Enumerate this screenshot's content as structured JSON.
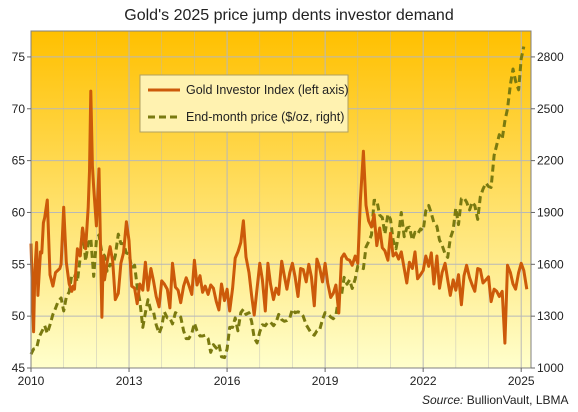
{
  "chart_data": {
    "type": "line",
    "title": "Gold's 2025 price jump  dents investor demand",
    "source": "Source:",
    "source_name": " BullionVault, LBMA",
    "left_axis": {
      "ylim": [
        45,
        77.5
      ],
      "ticks": [
        "45",
        "50",
        "55",
        "60",
        "65",
        "70",
        "75"
      ],
      "tick_values": [
        45,
        50,
        55,
        60,
        65,
        70,
        75
      ]
    },
    "right_axis": {
      "ylim": [
        1000,
        2950
      ],
      "ticks": [
        "1000",
        "1300",
        "1600",
        "1900",
        "2200",
        "2500",
        "2800"
      ],
      "tick_values": [
        1000,
        1300,
        1600,
        1900,
        2200,
        2500,
        2800
      ]
    },
    "x_axis": {
      "xlim": [
        2010,
        2025.3
      ],
      "ticks": [
        "2010",
        "2013",
        "2016",
        "2019",
        "2022",
        "2025"
      ],
      "tick_values": [
        2010,
        2013,
        2016,
        2019,
        2022,
        2025
      ]
    },
    "grid": true,
    "legend_position": "upper-center",
    "colors": {
      "index_line": "#cc5a0a",
      "price_line": "#7a7a10",
      "bg_top": "#ffc000",
      "bg_bottom": "#ffffcc",
      "grid": "#b8b8b8",
      "legend_bg": "#fff2b0",
      "legend_border": "#b0a060"
    },
    "series": [
      {
        "name": "Gold Investor Index (left axis)",
        "axis": "left",
        "style": "solid",
        "x": [
          2010.0,
          2010.17,
          2010.33,
          2010.5,
          2010.67,
          2010.83,
          2011.0,
          2011.17,
          2011.33,
          2011.5,
          2011.67,
          2011.83,
          2012.0,
          2012.17,
          2012.33,
          2012.5,
          2012.67,
          2012.83,
          2013.0,
          2013.17,
          2013.33,
          2013.5,
          2013.67,
          2013.83,
          2014.0,
          2014.17,
          2014.33,
          2014.5,
          2014.67,
          2014.83,
          2015.0,
          2015.17,
          2015.33,
          2015.5,
          2015.67,
          2015.83,
          2016.0,
          2016.17,
          2016.33,
          2016.5,
          2016.67,
          2016.83,
          2017.0,
          2017.17,
          2017.33,
          2017.5,
          2017.67,
          2017.83,
          2018.0,
          2018.17,
          2018.33,
          2018.5,
          2018.67,
          2018.83,
          2019.0,
          2019.17,
          2019.33,
          2019.5,
          2019.67,
          2019.83,
          2020.0,
          2020.17,
          2020.33,
          2020.5,
          2020.67,
          2020.83,
          2021.0,
          2021.17,
          2021.33,
          2021.5,
          2021.67,
          2021.83,
          2022.0,
          2022.17,
          2022.33,
          2022.5,
          2022.67,
          2022.83,
          2023.0,
          2023.17,
          2023.33,
          2023.5,
          2023.67,
          2023.83,
          2024.0,
          2024.17,
          2024.33,
          2024.5,
          2024.67,
          2024.83,
          2025.0,
          2025.08
        ],
        "values": [
          57.0,
          48.5,
          57.2,
          59.0,
          61.2,
          54.0,
          53.0,
          60.5,
          52.5,
          56.0,
          53.8,
          71.5,
          59.0,
          63.8,
          53.0,
          55.2,
          54.0,
          51.5,
          57.0,
          55.2,
          53.5,
          51.8,
          53.0,
          54.5,
          51.0,
          52.8,
          54.0,
          50.8,
          52.5,
          55.2,
          54.0,
          51.2,
          55.0,
          52.0,
          50.5,
          54.0,
          58.8,
          55.5,
          53.0,
          52.5,
          50.2,
          55.0,
          56.0,
          59.5,
          51.8,
          52.8,
          55.0,
          53.5,
          51.0,
          54.5,
          52.0,
          53.5,
          51.5,
          55.5,
          53.0,
          52.0,
          52.5,
          50.5,
          55.5,
          56.0,
          55.0,
          66.0,
          60.0,
          58.5,
          62.0,
          55.5,
          57.5,
          54.0,
          56.5,
          55.0,
          53.5,
          55.0,
          54.5,
          56.0,
          53.5,
          55.5,
          52.5,
          54.0,
          51.5,
          53.0,
          55.0,
          53.5,
          52.5,
          55.0,
          53.0,
          51.5,
          52.5,
          47.5,
          54.8,
          52.5,
          55.0,
          52.5
        ],
        "points_csv": "2010.0,57;2010.08,48.5;2010.12,54.5;2010.17,57.1;2010.21,52;2010.29,56.2;2010.33,56.1;2010.38,59;2010.42,59.5;2010.5,61.2;2010.58,54;2010.67,52.9;2010.75,54.2;2010.88,54.6;2010.92,55;2011.0,60.5;2011.08,55.2;2011.17,53.1;2011.25,52.4;2011.29,52.9;2011.33,52.6;2011.42,56.5;2011.5,55.8;2011.58,58.5;2011.67,56.5;2011.75,60.5;2011.79,64;2011.83,71.7;2011.88,64.5;2011.92,62.4;2012.0,58.7;2012.08,64.2;2012.17,49.9;2012.21,55.8;2012.25,53.5;2012.33,55.2;2012.42,56.7;2012.5,55.3;2012.58,51.6;2012.67,52.2;2012.75,55.1;2012.83,56.1;2012.92,59.1;2013.0,57.3;2013.08,52.9;2013.17,52.7;2013.25,51.2;2013.33,53.1;2013.42,52.5;2013.5,55.2;2013.58,52.5;2013.67,54.6;2013.75,53.4;2013.83,51.9;2013.92,50.9;2014.0,53.4;2014.08,53.1;2014.17,52.6;2014.25,50.8;2014.33,55.1;2014.42,52.8;2014.5,52.5;2014.58,51.3;2014.67,52.9;2014.75,53.7;2014.83,53.0;2014.92,52.1;2015.0,55.4;2015.08,53.0;2015.17,53.9;2015.25,52.3;2015.33,52.9;2015.42,52.1;2015.5,53.0;2015.58,52.7;2015.67,51.4;2015.75,50.6;2015.83,53.1;2015.92,51.5;2016.0,52.6;2016.08,50.5;2016.17,52.7;2016.25,55.6;2016.33,56.2;2016.42,57.1;2016.5,59.2;2016.58,55.7;2016.67,54.2;2016.75,52.0;2016.83,50.1;2016.92,52.7;2017.0,55.1;2017.08,53.5;2017.17,50.5;2017.25,55.1;2017.33,53.1;2017.42,51.6;2017.5,52.7;2017.58,52.1;2017.67,55.3;2017.75,53.9;2017.83,52.6;2017.92,54.2;2018.0,55.1;2018.08,53.8;2018.17,51.9;2018.25,54.6;2018.33,54.5;2018.42,53.3;2018.5,55.0;2018.58,53.8;2018.67,51.0;2018.75,55.5;2018.83,54.7;2018.92,53.3;2019.0,55.1;2019.08,53.2;2019.17,51.8;2019.25,52.2;2019.33,53.0;2019.42,50.3;2019.5,55.6;2019.58,56.0;2019.67,55.5;2019.75,55.4;2019.83,54.9;2019.92,55.8;2020.0,55.1;2020.08,61.2;2020.17,65.9;2020.25,60.7;2020.33,59.2;2020.42,58.6;2020.5,59.8;2020.58,56.8;2020.67,58.5;2020.75,56.6;2020.83,56.3;2020.92,55.4;2021.0,58.0;2021.08,55.8;2021.17,56.1;2021.25,55.5;2021.33,56.2;2021.42,54.6;2021.5,53.2;2021.58,55.2;2021.67,54.6;2021.75,56.2;2021.83,53.6;2021.92,54.0;2022.0,54.4;2022.08,55.8;2022.17,54.8;2022.25,56.1;2022.33,53.1;2022.42,55.8;2022.5,52.7;2022.58,54.2;2022.67,55.1;2022.75,53.5;2022.83,52.0;2022.92,53.5;2023.0,52.5;2023.08,54.0;2023.17,51.1;2023.25,53.9;2023.33,54.9;2023.42,53.7;2023.5,53.0;2023.58,52.4;2023.67,54.6;2023.75,54.5;2023.83,53.2;2023.92,53.5;2024.0,53.8;2024.08,51.4;2024.17,52.6;2024.25,52.4;2024.33,51.9;2024.42,52.4;2024.5,47.4;2024.58,54.9;2024.67,54.2;2024.75,53.1;2024.83,52.6;2024.92,54.2;2025.0,55.1;2025.08,54.4;2025.17,52.6"
      },
      {
        "name": "End-month price ($/oz, right)",
        "axis": "right",
        "style": "dashed",
        "points_csv": "2010.0,1080;2010.08,1110;2010.17,1115;2010.25,1180;2010.33,1210;2010.42,1245;2010.5,1200;2010.58,1250;2010.67,1310;2010.75,1345;2010.83,1385;2010.92,1405;2011.0,1330;2011.08,1410;2011.17,1440;2011.25,1540;2011.33,1535;2011.42,1500;2011.5,1630;2011.58,1815;2011.67,1620;2011.75,1720;2011.83,1750;2011.92,1530;2012.0,1740;2012.08,1770;2012.17,1665;2012.25,1650;2012.33,1560;2012.42,1600;2012.5,1595;2012.58,1650;2012.67,1775;2012.75,1720;2012.83,1720;2012.92,1665;2013.0,1660;2013.08,1580;2013.17,1595;2013.25,1470;2013.33,1390;2013.42,1235;2013.5,1320;2013.58,1395;2013.67,1330;2013.75,1325;2013.83,1250;2013.92,1200;2014.0,1240;2014.08,1325;2014.17,1290;2014.25,1290;2014.33,1255;2014.42,1320;2014.5,1310;2014.58,1295;2014.67,1215;2014.75,1170;2014.83,1170;2014.92,1200;2015.0,1260;2015.08,1215;2015.17,1185;2015.25,1185;2015.33,1190;2015.42,1170;2015.5,1090;2015.58,1135;2015.67,1115;2015.75,1140;2015.83,1065;2015.92,1060;2016.0,1110;2016.08,1235;2016.17,1235;2016.25,1290;2016.33,1215;2016.42,1320;2016.5,1340;2016.58,1310;2016.67,1320;2016.75,1270;2016.83,1175;2016.92,1145;2017.0,1210;2017.08,1250;2017.17,1245;2017.25,1265;2017.33,1265;2017.42,1245;2017.5,1265;2017.58,1310;2017.67,1280;2017.75,1270;2017.83,1275;2017.92,1290;2018.0,1340;2018.08,1320;2018.17,1325;2018.25,1320;2018.33,1300;2018.42,1250;2018.5,1225;2018.58,1200;2018.67,1190;2018.75,1215;2018.83,1220;2018.92,1280;2019.0,1320;2019.08,1315;2019.17,1295;2019.25,1285;2019.33,1305;2019.42,1410;2019.5,1420;2019.58,1525;2019.67,1485;2019.75,1510;2019.83,1460;2019.92,1515;2020.0,1590;2020.08,1585;2020.17,1575;2020.25,1700;2020.33,1730;2020.42,1770;2020.5,1970;2020.58,1970;2020.67,1885;2020.75,1870;2020.83,1775;2020.92,1890;2021.0,1860;2021.08,1740;2021.17,1690;2021.25,1770;2021.33,1900;2021.42,1760;2021.5,1810;2021.58,1815;2021.67,1740;2021.75,1785;2021.83,1775;2021.92,1805;2022.0,1795;2022.08,1910;2022.17,1940;2022.25,1895;2022.33,1840;2022.42,1820;2022.5,1740;2022.58,1710;2022.67,1660;2022.75,1640;2022.83,1750;2022.92,1800;2023.0,1925;2023.08,1830;2023.17,1980;2023.25,1985;2023.33,1960;2023.42,1915;2023.5,1960;2023.58,1940;2023.67,1860;2023.75,1990;2023.83,2035;2023.92,2070;2024.0,2050;2024.08,2045;2024.17,2230;2024.25,2290;2024.33,2350;2024.42,2325;2024.5,2430;2024.58,2500;2024.67,2640;2024.75,2730;2024.83,2660;2024.92,2610;2025.0,2790;2025.08,2860"
      }
    ]
  }
}
